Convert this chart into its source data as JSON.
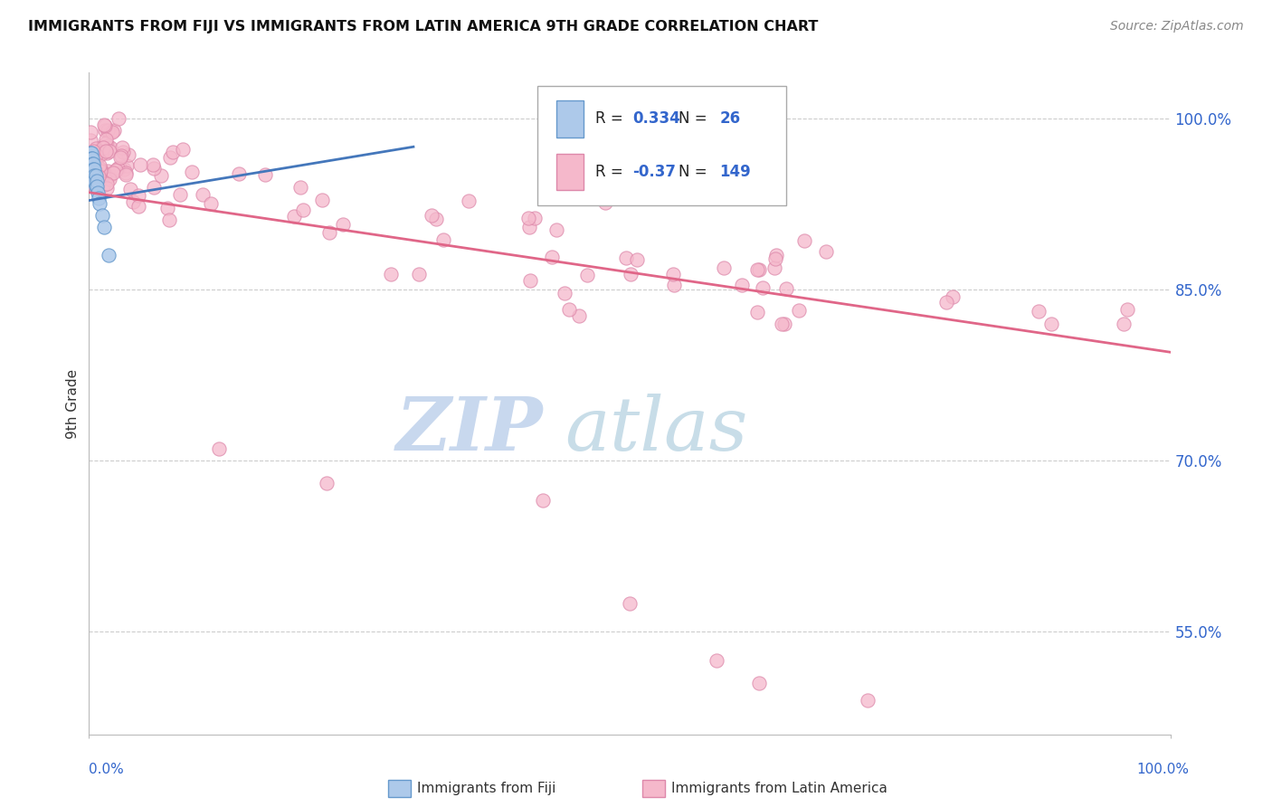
{
  "title": "IMMIGRANTS FROM FIJI VS IMMIGRANTS FROM LATIN AMERICA 9TH GRADE CORRELATION CHART",
  "source": "Source: ZipAtlas.com",
  "ylabel": "9th Grade",
  "ytick_labels": [
    "100.0%",
    "85.0%",
    "70.0%",
    "55.0%"
  ],
  "ytick_values": [
    1.0,
    0.85,
    0.7,
    0.55
  ],
  "ymin": 0.46,
  "ymax": 1.04,
  "fiji_R": 0.334,
  "fiji_N": 26,
  "latin_R": -0.37,
  "latin_N": 149,
  "fiji_color": "#adc9ea",
  "fiji_edge_color": "#6699cc",
  "fiji_line_color": "#4477bb",
  "latin_color": "#f5b8cb",
  "latin_edge_color": "#dd88aa",
  "latin_line_color": "#e06688",
  "watermark_zip_color": "#c8d8ee",
  "watermark_atlas_color": "#c8dde8"
}
